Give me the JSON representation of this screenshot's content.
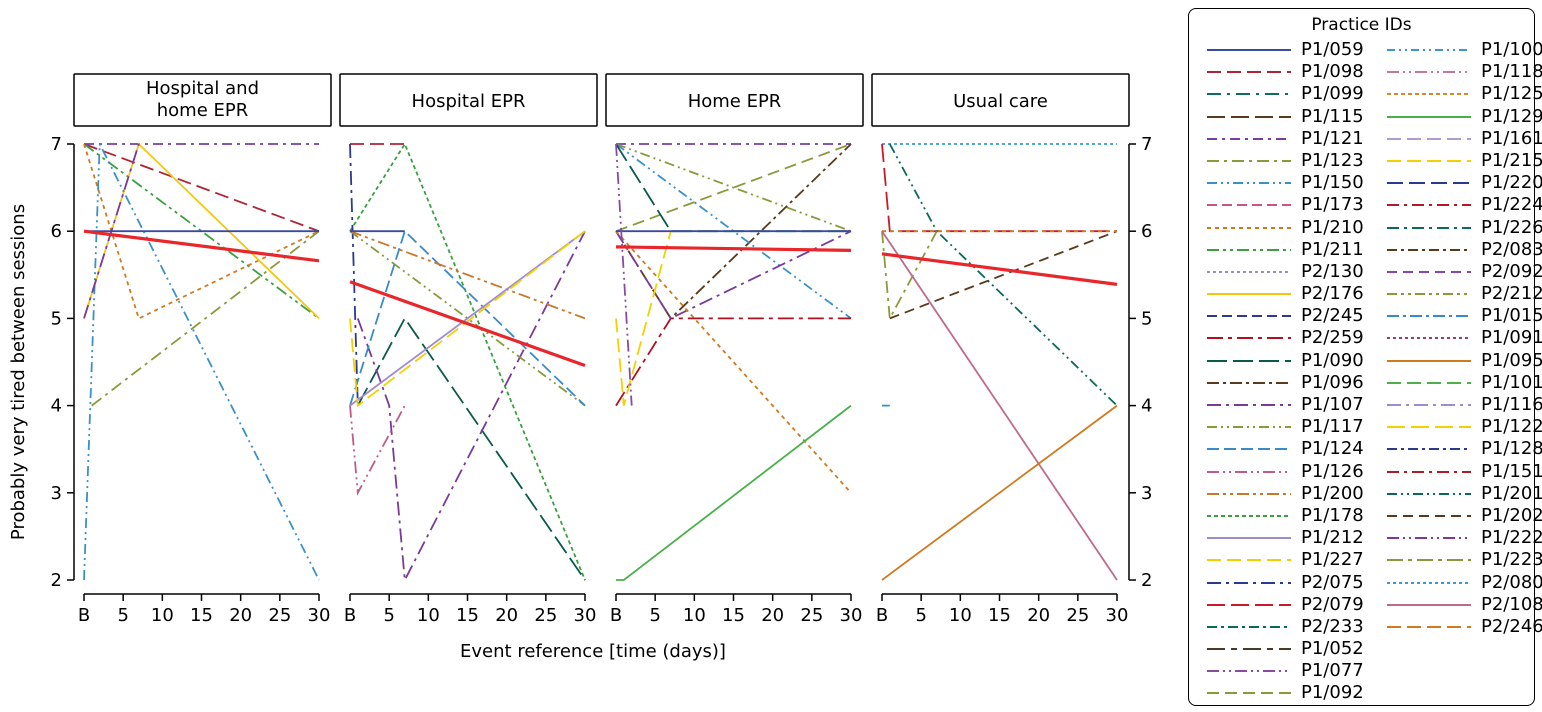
{
  "chart_data": {
    "type": "line",
    "ylabel": "Probably very tired between sessions",
    "xlabel": "Event reference [time (days)]",
    "x_ticks": [
      "B",
      "5",
      "10",
      "15",
      "20",
      "25",
      "30"
    ],
    "x_tick_values": [
      0,
      5,
      10,
      15,
      20,
      25,
      30
    ],
    "xlim": [
      0,
      30
    ],
    "ylim": [
      2,
      7
    ],
    "y_ticks": [
      "2",
      "3",
      "4",
      "5",
      "6",
      "7"
    ],
    "legend_title": "Practice IDs",
    "legend_placement": "right",
    "panels": [
      {
        "title": "Hospital and home EPR",
        "title_lines": [
          "Hospital and",
          "home EPR"
        ],
        "trend": [
          [
            0,
            6.0
          ],
          [
            30,
            5.66
          ]
        ],
        "series": [
          {
            "id": "P1/098",
            "x": [
              0,
              30
            ],
            "y": [
              7,
              6
            ]
          },
          {
            "id": "P1/211",
            "x": [
              0,
              30
            ],
            "y": [
              7,
              5
            ]
          },
          {
            "id": "P1/121",
            "x": [
              0,
              30
            ],
            "y": [
              7,
              7
            ]
          },
          {
            "id": "P1/210",
            "x": [
              0,
              7,
              30
            ],
            "y": [
              7,
              5,
              6
            ]
          },
          {
            "id": "P2/176",
            "x": [
              0,
              7,
              30
            ],
            "y": [
              5,
              7,
              5
            ]
          },
          {
            "id": "P1/123",
            "x": [
              1,
              30
            ],
            "y": [
              4,
              6
            ]
          },
          {
            "id": "P1/150",
            "x": [
              0,
              2,
              30
            ],
            "y": [
              2,
              7,
              2
            ]
          },
          {
            "id": "P1/107",
            "x": [
              0,
              7
            ],
            "y": [
              5,
              7
            ]
          },
          {
            "id": "P1/059",
            "x": [
              0,
              30
            ],
            "y": [
              6,
              6
            ]
          }
        ]
      },
      {
        "title": "Hospital EPR",
        "title_lines": [
          "Hospital EPR"
        ],
        "trend": [
          [
            0,
            5.42
          ],
          [
            30,
            4.46
          ]
        ],
        "series": [
          {
            "id": "P1/178",
            "x": [
              0,
              7,
              30
            ],
            "y": [
              6,
              7,
              2
            ]
          },
          {
            "id": "P1/098",
            "x": [
              0,
              7
            ],
            "y": [
              7,
              7
            ]
          },
          {
            "id": "P2/075",
            "x": [
              0,
              1
            ],
            "y": [
              7,
              4
            ]
          },
          {
            "id": "P1/090",
            "x": [
              1,
              7,
              30
            ],
            "y": [
              4,
              5,
              2
            ]
          },
          {
            "id": "P1/107",
            "x": [
              1,
              5,
              7,
              30
            ],
            "y": [
              5,
              4,
              2,
              6
            ]
          },
          {
            "id": "P1/126",
            "x": [
              0,
              1,
              7
            ],
            "y": [
              4,
              3,
              4
            ]
          },
          {
            "id": "P1/117",
            "x": [
              0,
              30
            ],
            "y": [
              6,
              4
            ]
          },
          {
            "id": "P1/124",
            "x": [
              0,
              7,
              30
            ],
            "y": [
              4,
              6,
              4
            ]
          },
          {
            "id": "P1/200",
            "x": [
              0,
              30
            ],
            "y": [
              6,
              5
            ]
          },
          {
            "id": "P1/212",
            "x": [
              0,
              30
            ],
            "y": [
              4,
              6
            ]
          },
          {
            "id": "P1/227",
            "x": [
              0,
              1,
              30
            ],
            "y": [
              5,
              4,
              6
            ]
          },
          {
            "id": "P1/059",
            "x": [
              0,
              7
            ],
            "y": [
              6,
              6
            ]
          }
        ]
      },
      {
        "title": "Home EPR",
        "title_lines": [
          "Home EPR"
        ],
        "trend": [
          [
            0,
            5.82
          ],
          [
            30,
            5.78
          ]
        ],
        "series": [
          {
            "id": "P1/121",
            "x": [
              0,
              30
            ],
            "y": [
              7,
              7
            ]
          },
          {
            "id": "P1/117",
            "x": [
              0,
              30
            ],
            "y": [
              7,
              6
            ]
          },
          {
            "id": "P1/092",
            "x": [
              0,
              30
            ],
            "y": [
              6,
              7
            ]
          },
          {
            "id": "P1/096",
            "x": [
              0,
              7,
              30
            ],
            "y": [
              6,
              5,
              7
            ]
          },
          {
            "id": "P1/150",
            "x": [
              0,
              30
            ],
            "y": [
              7,
              5
            ]
          },
          {
            "id": "P1/090",
            "x": [
              0,
              7,
              30
            ],
            "y": [
              7,
              6,
              6
            ]
          },
          {
            "id": "P2/259",
            "x": [
              0,
              7,
              30
            ],
            "y": [
              4,
              5,
              5
            ]
          },
          {
            "id": "P1/107",
            "x": [
              0,
              7,
              30
            ],
            "y": [
              6,
              5,
              6
            ]
          },
          {
            "id": "P1/227",
            "x": [
              0,
              1,
              7
            ],
            "y": [
              5,
              4,
              6
            ]
          },
          {
            "id": "P1/210",
            "x": [
              0,
              30
            ],
            "y": [
              6,
              3
            ]
          },
          {
            "id": "P1/059",
            "x": [
              0,
              30
            ],
            "y": [
              6,
              6
            ]
          },
          {
            "id": "P1/129",
            "x": [
              0,
              1,
              30
            ],
            "y": [
              2,
              2,
              4
            ]
          },
          {
            "id": "P1/077",
            "x": [
              0,
              2
            ],
            "y": [
              7,
              4
            ]
          }
        ]
      },
      {
        "title": "Usual care",
        "title_lines": [
          "Usual care"
        ],
        "trend": [
          [
            0,
            5.74
          ],
          [
            30,
            5.39
          ]
        ],
        "series": [
          {
            "id": "P2/080",
            "x": [
              0,
              30
            ],
            "y": [
              7,
              7
            ]
          },
          {
            "id": "P2/079",
            "x": [
              0,
              1,
              30
            ],
            "y": [
              7,
              6,
              6
            ]
          },
          {
            "id": "P1/201",
            "x": [
              1,
              7,
              30
            ],
            "y": [
              7,
              6,
              4
            ]
          },
          {
            "id": "P1/202",
            "x": [
              1,
              30
            ],
            "y": [
              5,
              6
            ]
          },
          {
            "id": "P1/210",
            "x": [
              0,
              30
            ],
            "y": [
              6,
              6
            ]
          },
          {
            "id": "P1/123",
            "x": [
              0,
              1,
              7
            ],
            "y": [
              6,
              5,
              6
            ]
          },
          {
            "id": "P2/108",
            "x": [
              0,
              30
            ],
            "y": [
              6,
              2
            ]
          },
          {
            "id": "P1/095",
            "x": [
              0,
              30
            ],
            "y": [
              2,
              4
            ]
          },
          {
            "id": "P1/150",
            "x": [
              0,
              1
            ],
            "y": [
              4,
              4
            ]
          }
        ]
      }
    ],
    "trend_color": "#e8262b",
    "legend": [
      {
        "id": "P1/059",
        "color": "#3a4aa0",
        "dash": ""
      },
      {
        "id": "P1/098",
        "color": "#b22234",
        "dash": "14,6"
      },
      {
        "id": "P1/099",
        "color": "#0f6d5e",
        "dash": "14,6,3,6"
      },
      {
        "id": "P1/115",
        "color": "#5a3a1e",
        "dash": "18,6"
      },
      {
        "id": "P1/121",
        "color": "#7a3ea0",
        "dash": "10,5,3,5"
      },
      {
        "id": "P1/123",
        "color": "#8a9a3a",
        "dash": "12,5,3,5"
      },
      {
        "id": "P1/150",
        "color": "#3a90c8",
        "dash": "10,4,2,4,2,4"
      },
      {
        "id": "P1/173",
        "color": "#c8558a",
        "dash": "10,5"
      },
      {
        "id": "P1/210",
        "color": "#d07a20",
        "dash": "4,4"
      },
      {
        "id": "P1/211",
        "color": "#3aa040",
        "dash": "12,4,3,4,3,4"
      },
      {
        "id": "P2/130",
        "color": "#9a8ac8",
        "dash": "3,3"
      },
      {
        "id": "P2/176",
        "color": "#f2c80f",
        "dash": ""
      },
      {
        "id": "P2/245",
        "color": "#2a3a90",
        "dash": "10,5"
      },
      {
        "id": "P2/259",
        "color": "#b01020",
        "dash": "16,5,4,5"
      },
      {
        "id": "P1/090",
        "color": "#0a5a4a",
        "dash": "20,6"
      },
      {
        "id": "P1/096",
        "color": "#5a3a1a",
        "dash": "12,4,3,4"
      },
      {
        "id": "P1/107",
        "color": "#7a3a9a",
        "dash": "14,5,3,5"
      },
      {
        "id": "P1/117",
        "color": "#8a9a3a",
        "dash": "10,4,2,4,2,4"
      },
      {
        "id": "P1/124",
        "color": "#3a8ac8",
        "dash": "12,5"
      },
      {
        "id": "P1/126",
        "color": "#c05a8a",
        "dash": "12,4,2,4,2,4"
      },
      {
        "id": "P1/200",
        "color": "#c8782a",
        "dash": "12,4,3,4,3,4"
      },
      {
        "id": "P1/178",
        "color": "#3aa040",
        "dash": "4,3"
      },
      {
        "id": "P1/212",
        "color": "#a08ad0",
        "dash": ""
      },
      {
        "id": "P1/227",
        "color": "#f5d000",
        "dash": "14,6"
      },
      {
        "id": "P2/075",
        "color": "#2a3a90",
        "dash": "14,5,3,5"
      },
      {
        "id": "P2/079",
        "color": "#c81a2a",
        "dash": "18,6"
      },
      {
        "id": "P2/233",
        "color": "#0a6a5a",
        "dash": "10,4,3,4"
      },
      {
        "id": "P1/052",
        "color": "#4a3a2a",
        "dash": "18,6,6,6"
      },
      {
        "id": "P1/077",
        "color": "#8a4aa0",
        "dash": "12,4,2,4,2,4"
      },
      {
        "id": "P1/092",
        "color": "#8a9a3a",
        "dash": "12,6"
      },
      {
        "id": "P1/100",
        "color": "#3a9ad0",
        "dash": "8,4,2,4,2,4"
      },
      {
        "id": "P1/118",
        "color": "#c07a9a",
        "dash": "12,4,2,4,2,4"
      },
      {
        "id": "P1/125",
        "color": "#d08a30",
        "dash": "4,3"
      },
      {
        "id": "P1/129",
        "color": "#4ab04a",
        "dash": ""
      },
      {
        "id": "P1/161",
        "color": "#b09ad0",
        "dash": "14,6"
      },
      {
        "id": "P1/215",
        "color": "#f5d000",
        "dash": "14,6"
      },
      {
        "id": "P1/220",
        "color": "#2a3a90",
        "dash": "16,6"
      },
      {
        "id": "P1/224",
        "color": "#b01a2a",
        "dash": "12,5,3,5"
      },
      {
        "id": "P1/226",
        "color": "#0a6a5a",
        "dash": "12,5,3,5"
      },
      {
        "id": "P2/083",
        "color": "#5a3a1a",
        "dash": "10,4,3,4"
      },
      {
        "id": "P2/092",
        "color": "#8a4aa0",
        "dash": "10,6"
      },
      {
        "id": "P2/212",
        "color": "#8a9a3a",
        "dash": "10,4,3,4,3,4"
      },
      {
        "id": "P1/015",
        "color": "#3a8ac8",
        "dash": "12,4,3,4"
      },
      {
        "id": "P1/091",
        "color": "#a03a6a",
        "dash": "3,3"
      },
      {
        "id": "P1/095",
        "color": "#d07a20",
        "dash": ""
      },
      {
        "id": "P1/101",
        "color": "#4ab04a",
        "dash": "14,6"
      },
      {
        "id": "P1/116",
        "color": "#a08ad0",
        "dash": "14,5,3,5"
      },
      {
        "id": "P1/122",
        "color": "#f5d000",
        "dash": "18,6"
      },
      {
        "id": "P1/128",
        "color": "#2a3a90",
        "dash": "10,4,3,4"
      },
      {
        "id": "P1/151",
        "color": "#b01a2a",
        "dash": "12,5,3,5"
      },
      {
        "id": "P1/201",
        "color": "#0a6a5a",
        "dash": "10,4,2,4,2,4"
      },
      {
        "id": "P1/202",
        "color": "#5a3a1a",
        "dash": "10,6"
      },
      {
        "id": "P1/222",
        "color": "#7a3a9a",
        "dash": "12,4,2,4,2,4"
      },
      {
        "id": "P1/223",
        "color": "#8a9a3a",
        "dash": "16,5,4,5"
      },
      {
        "id": "P2/080",
        "color": "#3a9ad0",
        "dash": "3,3"
      },
      {
        "id": "P2/108",
        "color": "#c06a8a",
        "dash": ""
      },
      {
        "id": "P2/246",
        "color": "#d07a20",
        "dash": "14,6"
      }
    ]
  }
}
